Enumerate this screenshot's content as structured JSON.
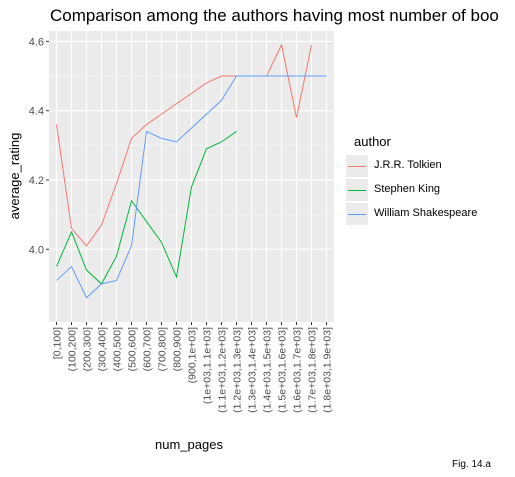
{
  "chart_data": {
    "type": "line",
    "title": "Comparison among the authors having most number of boo",
    "xlabel": "num_pages",
    "ylabel": "average_rating",
    "caption": "Fig. 14.a",
    "legend_title": "author",
    "legend_position": "right",
    "grid": true,
    "ylim": [
      3.79,
      4.63
    ],
    "y_ticks": [
      4.0,
      4.2,
      4.4,
      4.6
    ],
    "y_tick_labels": [
      "4.0",
      "4.2",
      "4.4",
      "4.6"
    ],
    "categories": [
      "[0,100]",
      "(100,200]",
      "(200,300]",
      "(300,400]",
      "(400,500]",
      "(500,600]",
      "(600,700]",
      "(700,800]",
      "(800,900]",
      "(900,1e+03]",
      "(1e+03,1.1e+03]",
      "(1.1e+03,1.2e+03]",
      "(1.2e+03,1.3e+03]",
      "(1.3e+03,1.4e+03]",
      "(1.4e+03,1.5e+03]",
      "(1.5e+03,1.6e+03]",
      "(1.6e+03,1.7e+03]",
      "(1.7e+03,1.8e+03]",
      "(1.8e+03,1.9e+03]"
    ],
    "series": [
      {
        "name": "J.R.R. Tolkien",
        "color": "#F8766D",
        "values": [
          4.36,
          4.06,
          4.01,
          4.07,
          4.19,
          4.32,
          4.36,
          4.39,
          4.42,
          4.45,
          4.48,
          4.5,
          4.5,
          4.5,
          4.5,
          4.59,
          4.38,
          4.59,
          null
        ]
      },
      {
        "name": "Stephen King",
        "color": "#00BA38",
        "values": [
          3.95,
          4.05,
          3.94,
          3.9,
          3.98,
          4.14,
          4.08,
          4.02,
          3.92,
          4.18,
          4.29,
          4.31,
          4.34,
          null,
          null,
          null,
          null,
          null,
          null
        ]
      },
      {
        "name": "William Shakespeare",
        "color": "#619CFF",
        "values": [
          3.91,
          3.95,
          3.86,
          3.9,
          3.91,
          4.01,
          4.34,
          4.32,
          4.31,
          4.35,
          4.39,
          4.43,
          4.5,
          4.5,
          4.5,
          4.5,
          4.5,
          4.5,
          4.5
        ]
      }
    ]
  }
}
